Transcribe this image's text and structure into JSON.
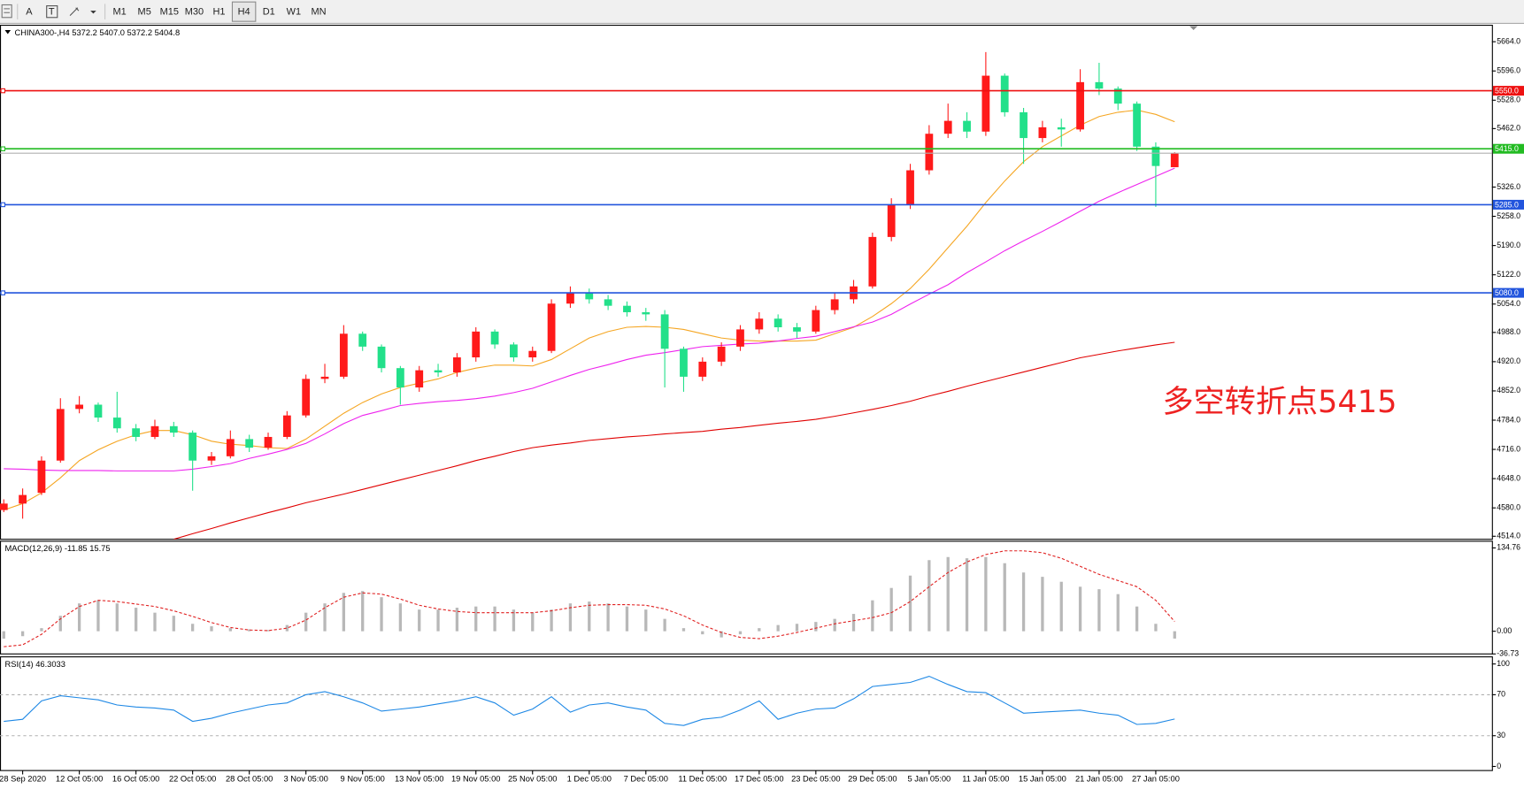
{
  "toolbar": {
    "tools": [
      "A",
      "T"
    ],
    "timeframes": [
      "M1",
      "M5",
      "M15",
      "M30",
      "H1",
      "H4",
      "D1",
      "W1",
      "MN"
    ],
    "active_index": 5
  },
  "chart_data": [
    {
      "type": "candlestick",
      "title": "CHINA300-,H4 5372.2 5407.0 5372.2 5404.8",
      "up_color": "#ff1a1a",
      "down_color": "#22e08a",
      "open": [
        4575,
        4590,
        4615,
        4690,
        4810,
        4820,
        4790,
        4765,
        4745,
        4770,
        4755,
        4690,
        4700,
        4740,
        4720,
        4745,
        4795,
        4880,
        4885,
        4985,
        4955,
        4905,
        4860,
        4900,
        4895,
        4930,
        4990,
        4960,
        4930,
        4945,
        5055,
        5080,
        5065,
        5050,
        5035,
        5030,
        4950,
        4885,
        4920,
        4955,
        4995,
        5020,
        5000,
        4990,
        5040,
        5065,
        5095,
        5210,
        5285,
        5365,
        5450,
        5480,
        5455,
        5585,
        5500,
        5440,
        5465,
        5460,
        5570,
        5555,
        5520,
        5420,
        5372.2
      ],
      "high": [
        4600,
        4625,
        4700,
        4835,
        4840,
        4825,
        4850,
        4775,
        4785,
        4780,
        4760,
        4710,
        4760,
        4750,
        4755,
        4805,
        4890,
        4915,
        5005,
        4990,
        4960,
        4910,
        4910,
        4915,
        4940,
        5000,
        4995,
        4965,
        4955,
        5065,
        5095,
        5090,
        5075,
        5060,
        5045,
        5040,
        4955,
        4930,
        4965,
        5005,
        5035,
        5030,
        5010,
        5050,
        5080,
        5110,
        5220,
        5300,
        5380,
        5470,
        5520,
        5500,
        5640,
        5590,
        5510,
        5480,
        5485,
        5600,
        5615,
        5560,
        5525,
        5430,
        5407.0
      ],
      "low": [
        4570,
        4555,
        4610,
        4685,
        4800,
        4780,
        4755,
        4735,
        4740,
        4745,
        4620,
        4680,
        4695,
        4710,
        4715,
        4740,
        4790,
        4870,
        4880,
        4945,
        4895,
        4820,
        4850,
        4885,
        4885,
        4920,
        4950,
        4920,
        4920,
        4940,
        5045,
        5055,
        5040,
        5025,
        5015,
        4860,
        4850,
        4875,
        4910,
        4945,
        4985,
        4990,
        4975,
        4985,
        5030,
        5055,
        5090,
        5200,
        5275,
        5355,
        5440,
        5440,
        5445,
        5490,
        5380,
        5430,
        5420,
        5455,
        5540,
        5505,
        5410,
        5280,
        5372.2
      ],
      "close": [
        4590,
        4610,
        4690,
        4810,
        4820,
        4790,
        4765,
        4745,
        4770,
        4755,
        4690,
        4700,
        4740,
        4720,
        4745,
        4795,
        4880,
        4885,
        4985,
        4955,
        4905,
        4860,
        4900,
        4895,
        4930,
        4990,
        4960,
        4930,
        4945,
        5055,
        5080,
        5065,
        5050,
        5035,
        5030,
        4950,
        4885,
        4920,
        4955,
        4995,
        5020,
        5000,
        4990,
        5040,
        5065,
        5095,
        5210,
        5285,
        5365,
        5450,
        5480,
        5455,
        5585,
        5500,
        5440,
        5465,
        5460,
        5570,
        5555,
        5520,
        5420,
        5375,
        5404.8
      ],
      "series": [
        {
          "color": "#f5a623",
          "values": [
            4575,
            4590,
            4615,
            4650,
            4690,
            4715,
            4735,
            4750,
            4760,
            4760,
            4750,
            4735,
            4728,
            4725,
            4720,
            4718,
            4740,
            4770,
            4800,
            4825,
            4845,
            4860,
            4870,
            4880,
            4895,
            4905,
            4912,
            4912,
            4910,
            4925,
            4950,
            4975,
            4990,
            5000,
            5002,
            5000,
            4995,
            4985,
            4975,
            4970,
            4968,
            4968,
            4968,
            4970,
            4985,
            5000,
            5025,
            5055,
            5090,
            5135,
            5185,
            5235,
            5290,
            5340,
            5385,
            5420,
            5445,
            5470,
            5490,
            5500,
            5505,
            5495,
            5478
          ]
        },
        {
          "color": "#ee22ee",
          "values": [
            4671,
            4670,
            4668,
            4667,
            4667,
            4667,
            4666,
            4666,
            4666,
            4666,
            4670,
            4676,
            4683,
            4695,
            4705,
            4716,
            4730,
            4752,
            4776,
            4795,
            4806,
            4818,
            4823,
            4827,
            4830,
            4834,
            4840,
            4848,
            4858,
            4873,
            4888,
            4902,
            4913,
            4925,
            4935,
            4941,
            4948,
            4955,
            4958,
            4961,
            4963,
            4968,
            4974,
            4979,
            4990,
            5001,
            5012,
            5030,
            5054,
            5077,
            5099,
            5127,
            5152,
            5178,
            5201,
            5223,
            5246,
            5270,
            5293,
            5313,
            5332,
            5351,
            5370
          ]
        },
        {
          "color": "#e00000",
          "values": [
            null,
            null,
            null,
            null,
            null,
            null,
            null,
            null,
            null,
            4507,
            4520,
            4532,
            4545,
            4557,
            4569,
            4580,
            4592,
            4602,
            4612,
            4623,
            4634,
            4645,
            4656,
            4667,
            4678,
            4690,
            4700,
            4711,
            4720,
            4726,
            4731,
            4737,
            4741,
            4745,
            4748,
            4752,
            4755,
            4758,
            4763,
            4767,
            4772,
            4777,
            4781,
            4786,
            4793,
            4801,
            4809,
            4818,
            4828,
            4840,
            4851,
            4863,
            4874,
            4885,
            4896,
            4907,
            4918,
            4929,
            4937,
            4945,
            4952,
            4959,
            4965
          ]
        }
      ],
      "hlines": [
        {
          "value": 5550,
          "label": "5550.0",
          "color": "#ee1111"
        },
        {
          "value": 5415,
          "label": "5415.0",
          "color": "#22bb22"
        },
        {
          "value": 5285,
          "label": "5285.0",
          "color": "#2255dd"
        },
        {
          "value": 5080,
          "label": "5080.0",
          "color": "#2255dd"
        }
      ],
      "annotation": "多空转折点5415",
      "annotation_color": "#ee2222",
      "xlim": [
        -0.2,
        78.8
      ],
      "ylim": [
        4507,
        5700
      ],
      "yticks": [
        {
          "value": 5664,
          "label": "5664.0"
        },
        {
          "value": 5596,
          "label": "5596.0"
        },
        {
          "value": 5528,
          "label": "5528.0"
        },
        {
          "value": 5462,
          "label": "5462.0"
        },
        {
          "value": 5326,
          "label": "5326.0"
        },
        {
          "value": 5258,
          "label": "5258.0"
        },
        {
          "value": 5190,
          "label": "5190.0"
        },
        {
          "value": 5122,
          "label": "5122.0"
        },
        {
          "value": 5054,
          "label": "5054.0"
        },
        {
          "value": 4988,
          "label": "4988.0"
        },
        {
          "value": 4920,
          "label": "4920.0"
        },
        {
          "value": 4852,
          "label": "4852.0"
        },
        {
          "value": 4784,
          "label": "4784.0"
        },
        {
          "value": 4716,
          "label": "4716.0"
        },
        {
          "value": 4648,
          "label": "4648.0"
        },
        {
          "value": 4580,
          "label": "4580.0"
        },
        {
          "value": 4514,
          "label": "4514.0"
        }
      ]
    },
    {
      "type": "macd",
      "title": "MACD(12,26,9) -11.85 15.75",
      "color": "#b8b8b8",
      "values": [
        -12,
        -8,
        5,
        25,
        45,
        50,
        45,
        38,
        30,
        25,
        12,
        8,
        5,
        3,
        2,
        10,
        30,
        45,
        62,
        65,
        55,
        45,
        35,
        35,
        38,
        40,
        40,
        35,
        30,
        35,
        45,
        48,
        45,
        40,
        35,
        20,
        5,
        -5,
        -10,
        -5,
        5,
        10,
        12,
        15,
        20,
        28,
        50,
        70,
        90,
        115,
        120,
        118,
        120,
        110,
        95,
        88,
        80,
        72,
        68,
        60,
        40,
        12,
        -11.85
      ],
      "signal": {
        "color": "#e02020",
        "values": [
          -25,
          -22,
          -5,
          20,
          40,
          50,
          48,
          44,
          40,
          33,
          24,
          14,
          6,
          2,
          1,
          5,
          18,
          38,
          55,
          62,
          60,
          52,
          42,
          36,
          32,
          30,
          30,
          30,
          30,
          33,
          38,
          42,
          43,
          43,
          42,
          36,
          25,
          10,
          -2,
          -10,
          -12,
          -8,
          -2,
          5,
          12,
          17,
          22,
          30,
          48,
          72,
          95,
          112,
          124,
          130,
          130,
          127,
          118,
          105,
          92,
          82,
          72,
          50,
          15.75
        ]
      },
      "xlim": [
        -0.2,
        78.8
      ],
      "ylim": [
        -36.73,
        144
      ],
      "yticks": [
        134.76,
        {
          "value": 0,
          "label": "0.00"
        },
        -36.73
      ]
    },
    {
      "type": "line",
      "title": "RSI(14) 46.3033",
      "series": [
        {
          "color": "#1e88e5",
          "values": [
            44,
            46,
            64,
            69,
            67,
            65,
            60,
            58,
            57,
            55,
            44,
            47,
            52,
            56,
            60,
            62,
            70,
            73,
            68,
            62,
            54,
            56,
            58,
            61,
            64,
            68,
            62,
            50,
            56,
            68,
            53,
            60,
            62,
            58,
            55,
            42,
            40,
            46,
            48,
            55,
            64,
            46,
            52,
            56,
            57,
            66,
            78,
            80,
            82,
            88,
            80,
            73,
            72,
            62,
            52,
            53,
            54,
            55,
            52,
            50,
            41,
            42,
            46.3033
          ]
        }
      ],
      "levels": [
        70,
        30
      ],
      "xlim": [
        -0.2,
        78.8
      ],
      "ylim": [
        -4,
        106
      ],
      "yticks": [
        100,
        70,
        30,
        0
      ],
      "xticks": [
        {
          "value": 1,
          "label": "28 Sep 2020"
        },
        {
          "value": 4,
          "label": "12 Oct 05:00"
        },
        {
          "value": 7,
          "label": "16 Oct 05:00"
        },
        {
          "value": 10,
          "label": "22 Oct 05:00"
        },
        {
          "value": 13,
          "label": "28 Oct 05:00"
        },
        {
          "value": 16,
          "label": "3 Nov 05:00"
        },
        {
          "value": 19,
          "label": "9 Nov 05:00"
        },
        {
          "value": 22,
          "label": "13 Nov 05:00"
        },
        {
          "value": 25,
          "label": "19 Nov 05:00"
        },
        {
          "value": 28,
          "label": "25 Nov 05:00"
        },
        {
          "value": 31,
          "label": "1 Dec 05:00"
        },
        {
          "value": 34,
          "label": "7 Dec 05:00"
        },
        {
          "value": 37,
          "label": "11 Dec 05:00"
        },
        {
          "value": 40,
          "label": "17 Dec 05:00"
        },
        {
          "value": 43,
          "label": "23 Dec 05:00"
        },
        {
          "value": 46,
          "label": "29 Dec 05:00"
        },
        {
          "value": 49,
          "label": "5 Jan 05:00"
        },
        {
          "value": 52,
          "label": "11 Jan 05:00"
        },
        {
          "value": 55,
          "label": "15 Jan 05:00"
        },
        {
          "value": 58,
          "label": "21 Jan 05:00"
        },
        {
          "value": 61,
          "label": "27 Jan 05:00"
        }
      ]
    }
  ]
}
